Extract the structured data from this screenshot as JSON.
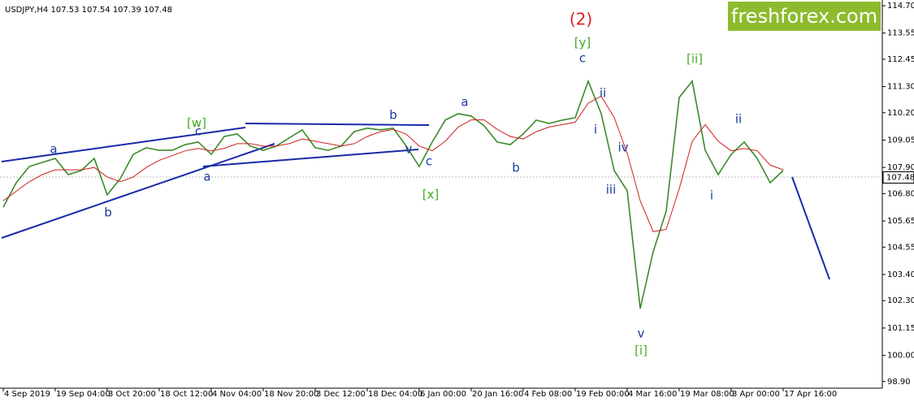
{
  "chart_data": {
    "type": "line",
    "title": "USDJPY,H4  107.53 107.54 107.39 107.48",
    "logo": "freshforex.com",
    "categories": [
      "4 Sep 2019",
      null,
      null,
      null,
      "19 Sep 04:00",
      null,
      null,
      null,
      "3 Oct 20:00",
      null,
      null,
      null,
      "18 Oct 12:00",
      null,
      null,
      null,
      "4 Nov 04:00",
      null,
      null,
      null,
      "18 Nov 20:00",
      null,
      null,
      null,
      "3 Dec 12:00",
      null,
      null,
      null,
      "18 Dec 04:00",
      null,
      null,
      null,
      "6 Jan 00:00",
      null,
      null,
      null,
      "20 Jan 16:00",
      null,
      null,
      null,
      "4 Feb 08:00",
      null,
      null,
      null,
      "19 Feb 00:00",
      null,
      null,
      null,
      "4 Mar 16:00",
      null,
      null,
      null,
      "19 Mar 08:00",
      null,
      null,
      null,
      "3 Apr 00:00",
      null,
      null,
      null,
      "17 Apr 16:00"
    ],
    "series": [
      {
        "color": "#3a8a2a",
        "values": [
          106.23,
          107.26,
          107.94,
          108.11,
          108.28,
          107.6,
          107.77,
          108.28,
          106.75,
          107.43,
          108.45,
          108.73,
          108.62,
          108.62,
          108.86,
          108.97,
          108.45,
          109.2,
          109.31,
          108.8,
          108.62,
          108.8,
          109.14,
          109.48,
          108.73,
          108.62,
          108.8,
          109.41,
          109.55,
          109.48,
          109.55,
          108.8,
          107.94,
          108.97,
          109.89,
          110.16,
          110.06,
          109.65,
          108.97,
          108.86,
          109.31,
          109.89,
          109.75,
          109.89,
          109.99,
          111.53,
          110.16,
          107.77,
          106.92,
          101.97,
          104.36,
          106.06,
          110.84,
          111.53,
          108.62,
          107.6,
          108.45,
          108.97,
          108.28,
          107.26,
          107.77
        ]
      },
      {
        "color": "#cc2020",
        "values": [
          106.5,
          106.9,
          107.3,
          107.6,
          107.8,
          107.8,
          107.8,
          107.9,
          107.5,
          107.3,
          107.5,
          107.9,
          108.2,
          108.4,
          108.6,
          108.7,
          108.6,
          108.7,
          108.9,
          108.9,
          108.8,
          108.8,
          108.9,
          109.1,
          109.0,
          108.9,
          108.8,
          108.9,
          109.2,
          109.4,
          109.5,
          109.3,
          108.8,
          108.6,
          109.0,
          109.6,
          109.9,
          109.9,
          109.5,
          109.2,
          109.1,
          109.4,
          109.6,
          109.7,
          109.8,
          110.6,
          110.9,
          110.0,
          108.5,
          106.5,
          105.2,
          105.3,
          107.0,
          109.0,
          109.7,
          109.0,
          108.6,
          108.7,
          108.6,
          108.0,
          107.8
        ]
      }
    ],
    "current_price": 107.48,
    "ylim": [
      98.62,
      114.94
    ],
    "yticks": [
      {
        "value": 114.7,
        "label": "114.70"
      },
      {
        "value": 113.55,
        "label": "113.55"
      },
      {
        "value": 112.45,
        "label": "112.45"
      },
      {
        "value": 111.3,
        "label": "111.30"
      },
      {
        "value": 110.2,
        "label": "110.20"
      },
      {
        "value": 109.05,
        "label": "109.05"
      },
      {
        "value": 107.9,
        "label": "107.90"
      },
      {
        "value": 106.8,
        "label": "106.80"
      },
      {
        "value": 105.65,
        "label": "105.65"
      },
      {
        "value": 104.55,
        "label": "104.55"
      },
      {
        "value": 103.4,
        "label": "103.40"
      },
      {
        "value": 102.3,
        "label": "102.30"
      },
      {
        "value": 101.15,
        "label": "101.15"
      },
      {
        "value": 100.0,
        "label": "100.00"
      },
      {
        "value": 98.9,
        "label": "98.90"
      }
    ],
    "annotations": [
      {
        "text": "(2)",
        "color": "#e02020"
      },
      {
        "text": "[y]",
        "color": "#44aa22"
      },
      {
        "text": "c",
        "color": "#1a3aa0"
      },
      {
        "text": "[ii]",
        "color": "#44aa22"
      },
      {
        "text": "ii",
        "color": "#1a3aa0"
      },
      {
        "text": "i",
        "color": "#1a3aa0"
      },
      {
        "text": "iv",
        "color": "#1a3aa0"
      },
      {
        "text": "iii",
        "color": "#1a3aa0"
      },
      {
        "text": "v",
        "color": "#1a3aa0"
      },
      {
        "text": "[i]",
        "color": "#44aa22"
      },
      {
        "text": "ii",
        "color": "#1a3aa0"
      },
      {
        "text": "i",
        "color": "#1a3aa0"
      },
      {
        "text": "a",
        "color": "#1a3aa0"
      },
      {
        "text": "b",
        "color": "#1a3aa0"
      },
      {
        "text": "b",
        "color": "#1a3aa0"
      },
      {
        "text": "c",
        "color": "#1a3aa0"
      },
      {
        "text": "[x]",
        "color": "#44aa22"
      },
      {
        "text": "v",
        "color": "#1a3aa0"
      },
      {
        "text": "[w]",
        "color": "#44aa22"
      },
      {
        "text": "c",
        "color": "#1a3aa0"
      },
      {
        "text": "a",
        "color": "#1a3aa0"
      },
      {
        "text": "a",
        "color": "#1a3aa0"
      },
      {
        "text": "b",
        "color": "#1a3aa0"
      }
    ]
  }
}
